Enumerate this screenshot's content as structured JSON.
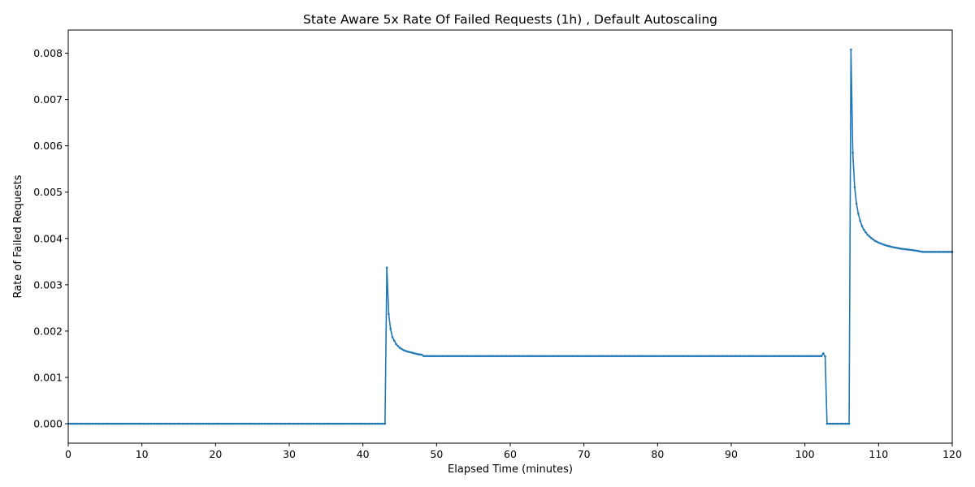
{
  "chart_data": {
    "type": "line",
    "title": "State Aware 5x Rate Of Failed Requests (1h) , Default Autoscaling",
    "xlabel": "Elapsed Time (minutes)",
    "ylabel": "Rate of Failed Requests",
    "xlim": [
      0,
      120
    ],
    "ylim": [
      -0.00042,
      0.0085
    ],
    "x_ticks": [
      0,
      10,
      20,
      30,
      40,
      50,
      60,
      70,
      80,
      90,
      100,
      110,
      120
    ],
    "y_ticks": [
      0.0,
      0.001,
      0.002,
      0.003,
      0.004,
      0.005,
      0.006,
      0.007,
      0.008
    ],
    "y_tick_labels": [
      "0.000",
      "0.001",
      "0.002",
      "0.003",
      "0.004",
      "0.005",
      "0.006",
      "0.007",
      "0.008"
    ],
    "grid": false,
    "color": "#1f77b4",
    "marker": "dot",
    "series": [
      {
        "x": [
          0,
          43,
          43.25,
          43.5,
          43.75,
          44,
          44.5,
          45,
          45.5,
          46,
          46.5,
          47,
          47.5,
          48,
          48.25,
          102.25,
          102.5,
          102.75,
          103,
          106,
          106.25,
          106.5,
          106.75,
          107,
          107.25,
          107.5,
          107.75,
          108,
          108.5,
          109,
          109.5,
          110,
          110.5,
          111,
          112,
          113,
          114,
          115,
          116,
          120
        ],
        "y": [
          0.0,
          0.0,
          0.00337,
          0.00237,
          0.00205,
          0.00187,
          0.00172,
          0.00164,
          0.00159,
          0.00156,
          0.00154,
          0.00152,
          0.0015,
          0.00149,
          0.00146,
          0.00146,
          0.00152,
          0.00145,
          0.0,
          0.0,
          0.00808,
          0.00585,
          0.00511,
          0.00475,
          0.00453,
          0.00438,
          0.00427,
          0.00419,
          0.00408,
          0.00401,
          0.00395,
          0.00391,
          0.00388,
          0.00385,
          0.00381,
          0.00378,
          0.00376,
          0.00374,
          0.00371,
          0.00371
        ]
      }
    ]
  }
}
